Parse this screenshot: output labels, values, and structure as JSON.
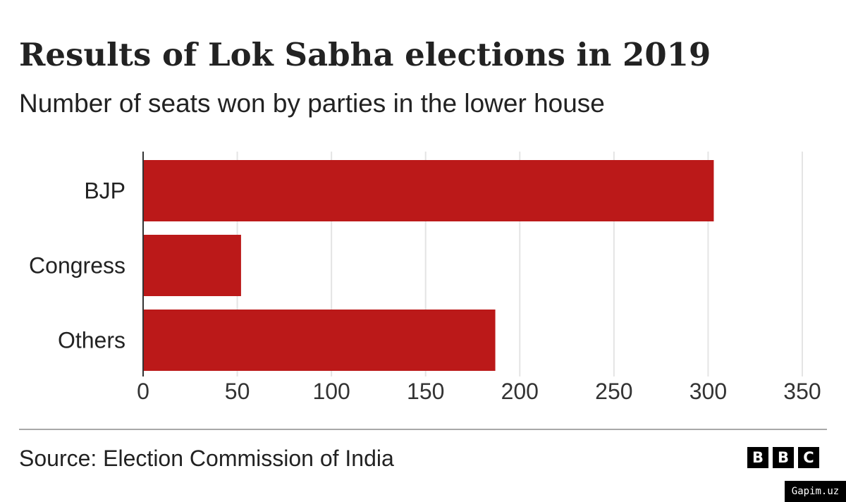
{
  "header": {
    "title": "Results of Lok Sabha elections in 2019",
    "subtitle": "Number of seats won by parties in the lower house"
  },
  "chart_data": {
    "type": "bar",
    "orientation": "horizontal",
    "categories": [
      "BJP",
      "Congress",
      "Others"
    ],
    "values": [
      303,
      52,
      187
    ],
    "xlim": [
      0,
      350
    ],
    "xticks": [
      0,
      50,
      100,
      150,
      200,
      250,
      300,
      350
    ],
    "grid": true,
    "xlabel": "",
    "ylabel": "",
    "bar_color": "#bb1919",
    "title": "Results of Lok Sabha elections in 2019",
    "subtitle": "Number of seats won by parties in the lower house"
  },
  "footer": {
    "source": "Source: Election Commission of India",
    "logo_letters": [
      "B",
      "B",
      "C"
    ],
    "watermark": "Gapim.uz"
  }
}
